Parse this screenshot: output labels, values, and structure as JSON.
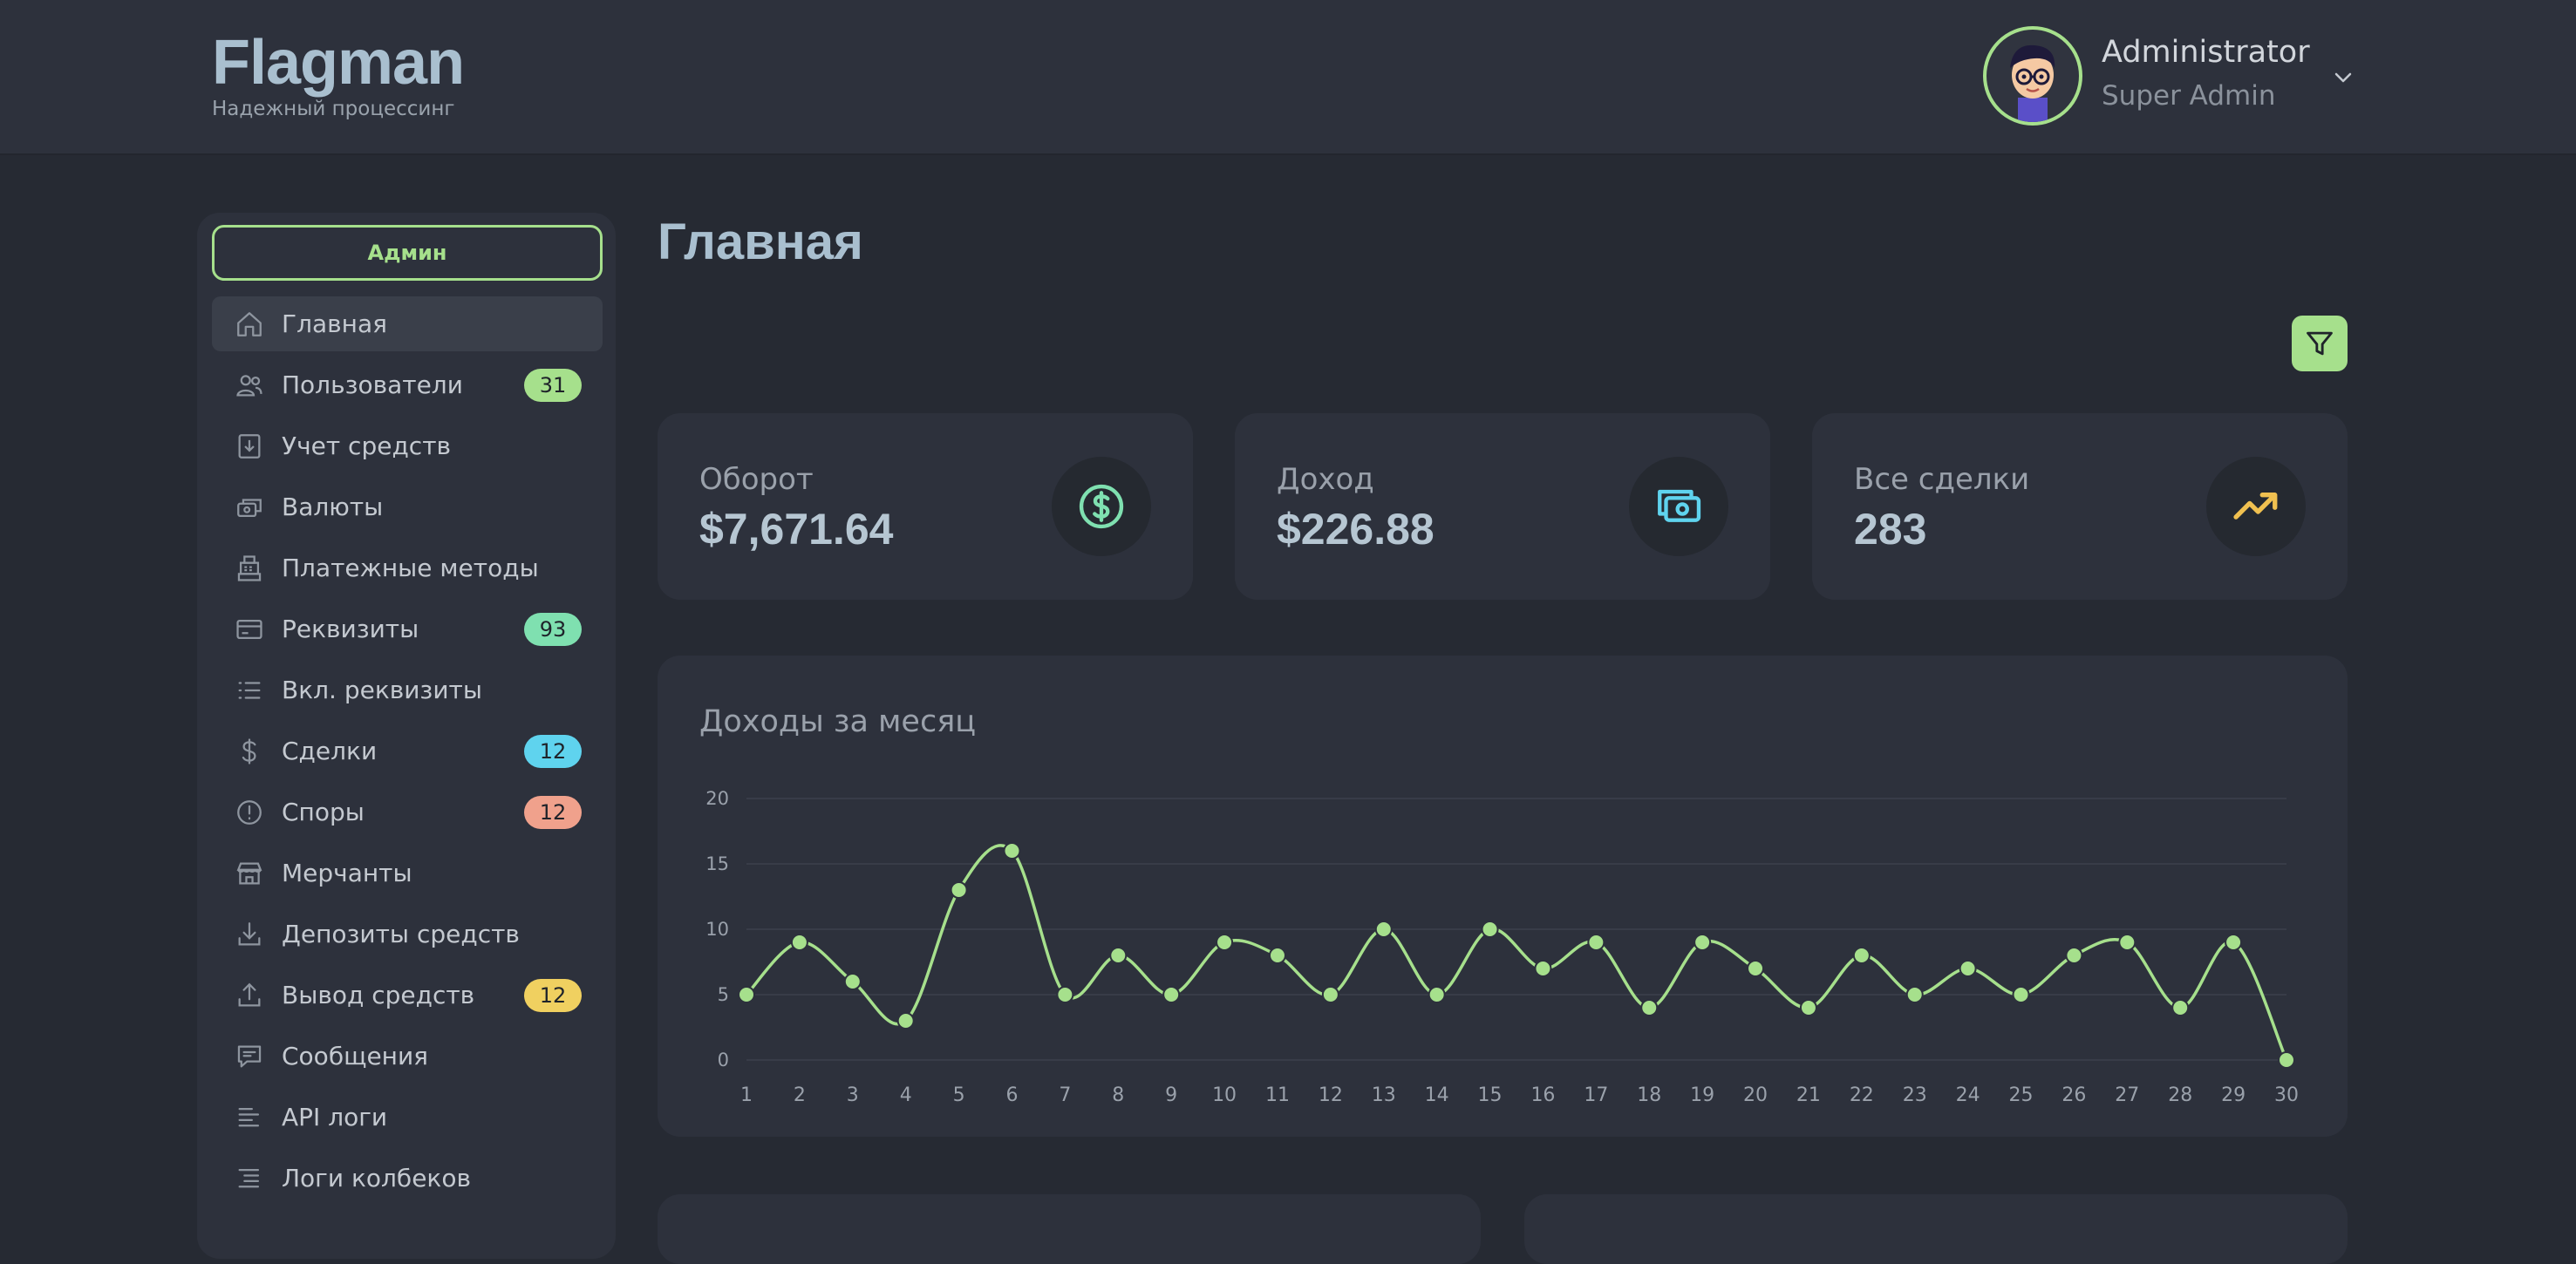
{
  "header": {
    "brand_title": "Flagman",
    "brand_subtitle": "Надежный процессинг",
    "user_name": "Administrator",
    "user_role": "Super Admin",
    "chevron_icon": "chevron-down-icon"
  },
  "sidebar": {
    "role_button": "Админ",
    "items": [
      {
        "label": "Главная",
        "icon": "home-icon",
        "active": true
      },
      {
        "label": "Пользователи",
        "icon": "users-icon",
        "badge": "31",
        "badge_color": "#a6e08c"
      },
      {
        "label": "Учет средств",
        "icon": "ledger-icon"
      },
      {
        "label": "Валюты",
        "icon": "currency-icon"
      },
      {
        "label": "Платежные методы",
        "icon": "register-icon"
      },
      {
        "label": "Реквизиты",
        "icon": "card-icon",
        "badge": "93",
        "badge_color": "#7fe0b0"
      },
      {
        "label": "Вкл. реквизиты",
        "icon": "list-icon"
      },
      {
        "label": "Сделки",
        "icon": "dollar-icon",
        "badge": "12",
        "badge_color": "#5fd3ee"
      },
      {
        "label": "Споры",
        "icon": "alert-icon",
        "badge": "12",
        "badge_color": "#f0a18c"
      },
      {
        "label": "Мерчанты",
        "icon": "store-icon"
      },
      {
        "label": "Депозиты средств",
        "icon": "download-icon"
      },
      {
        "label": "Вывод средств",
        "icon": "upload-icon",
        "badge": "12",
        "badge_color": "#f0d060"
      },
      {
        "label": "Сообщения",
        "icon": "message-icon"
      },
      {
        "label": "API логи",
        "icon": "log-icon"
      },
      {
        "label": "Логи колбеков",
        "icon": "callback-log-icon"
      }
    ]
  },
  "main": {
    "title": "Главная",
    "filter_icon": "filter-icon",
    "stats": [
      {
        "label": "Оборот",
        "value": "$7,671.64",
        "icon": "dollar-circle-icon",
        "icon_color": "#7fe0b0"
      },
      {
        "label": "Доход",
        "value": "$226.88",
        "icon": "cash-icon",
        "icon_color": "#5fd3ee"
      },
      {
        "label": "Все сделки",
        "value": "283",
        "icon": "trending-up-icon",
        "icon_color": "#f0c050"
      }
    ],
    "chart_title": "Доходы за месяц"
  },
  "chart_data": {
    "type": "line",
    "title": "Доходы за месяц",
    "x": [
      "1",
      "2",
      "3",
      "4",
      "5",
      "6",
      "7",
      "8",
      "9",
      "10",
      "11",
      "12",
      "13",
      "14",
      "15",
      "16",
      "17",
      "18",
      "19",
      "20",
      "21",
      "22",
      "23",
      "24",
      "25",
      "26",
      "27",
      "28",
      "29",
      "30"
    ],
    "series": [
      {
        "values": [
          5,
          9,
          6,
          3,
          13,
          16,
          5,
          8,
          5,
          9,
          8,
          5,
          10,
          5,
          10,
          7,
          9,
          4,
          9,
          7,
          4,
          8,
          5,
          7,
          5,
          8,
          9,
          4,
          9,
          0
        ]
      }
    ],
    "yticks": [
      "0",
      "5",
      "10",
      "15",
      "20"
    ],
    "ylim": [
      0,
      20
    ],
    "grid": true,
    "line_color": "#a6e08c"
  }
}
